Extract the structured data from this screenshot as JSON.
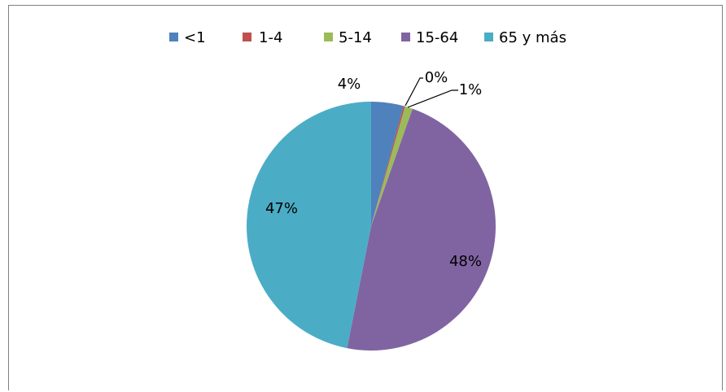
{
  "caption": "",
  "chart_data": {
    "type": "pie",
    "categories": [
      "<1",
      "1-4",
      "5-14",
      "15-64",
      "65 y más"
    ],
    "values": [
      4.2,
      0.2,
      1.0,
      47.7,
      46.9
    ],
    "data_labels": [
      "4%",
      "0%",
      "1%",
      "48%",
      "47%"
    ],
    "colors": [
      "#4F81BD",
      "#C0504D",
      "#9BBB59",
      "#8064A2",
      "#4BACC6"
    ],
    "legend_position": "top",
    "start_angle_deg": 0,
    "direction": "clockwise"
  }
}
